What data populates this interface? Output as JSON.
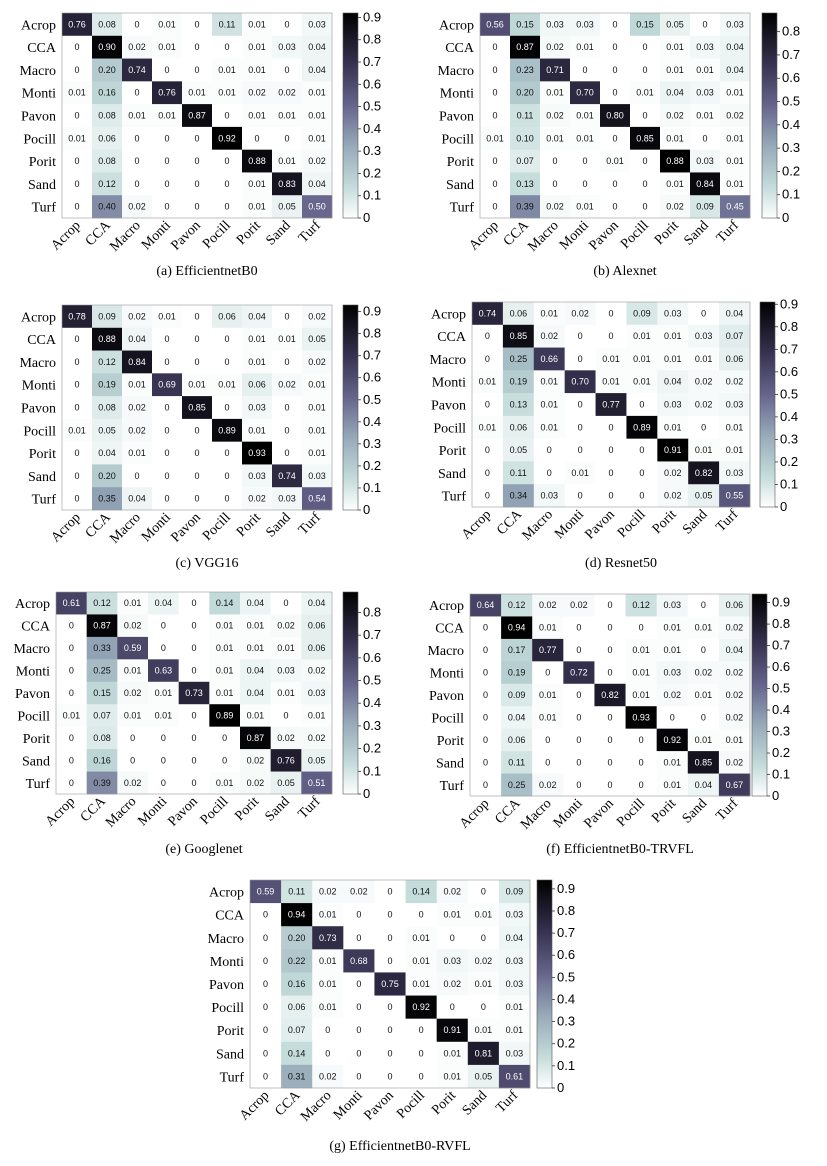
{
  "chart_data": [
    {
      "type": "heatmap",
      "caption": "(a) EfficientnetB0",
      "labels": [
        "Acrop",
        "CCA",
        "Macro",
        "Monti",
        "Pavon",
        "Pocill",
        "Porit",
        "Sand",
        "Turf"
      ],
      "matrix": [
        [
          0.76,
          0.08,
          0,
          0.01,
          0,
          0.11,
          0.01,
          0,
          0.03
        ],
        [
          0,
          0.9,
          0.02,
          0.01,
          0,
          0,
          0.01,
          0.03,
          0.04
        ],
        [
          0,
          0.2,
          0.74,
          0,
          0,
          0.01,
          0.01,
          0,
          0.04
        ],
        [
          0.01,
          0.16,
          0,
          0.76,
          0.01,
          0.01,
          0.02,
          0.02,
          0.01
        ],
        [
          0,
          0.08,
          0.01,
          0.01,
          0.87,
          0,
          0.01,
          0.01,
          0.01
        ],
        [
          0.01,
          0.06,
          0,
          0,
          0,
          0.92,
          0,
          0,
          0.01
        ],
        [
          0,
          0.08,
          0,
          0,
          0,
          0,
          0.88,
          0.01,
          0.02
        ],
        [
          0,
          0.12,
          0,
          0,
          0,
          0,
          0.01,
          0.83,
          0.04
        ],
        [
          0,
          0.4,
          0.02,
          0,
          0,
          0,
          0.01,
          0.05,
          0.5
        ]
      ],
      "colorbar_ticks": [
        "0",
        "0.1",
        "0.2",
        "0.3",
        "0.4",
        "0.5",
        "0.6",
        "0.7",
        "0.8",
        "0.9"
      ],
      "colorbar_range": [
        0,
        0.92
      ]
    },
    {
      "type": "heatmap",
      "caption": "(b) Alexnet",
      "labels": [
        "Acrop",
        "CCA",
        "Macro",
        "Monti",
        "Pavon",
        "Pocill",
        "Porit",
        "Sand",
        "Turf"
      ],
      "matrix": [
        [
          0.56,
          0.15,
          0.03,
          0.03,
          0,
          0.15,
          0.05,
          0,
          0.03
        ],
        [
          0,
          0.87,
          0.02,
          0.01,
          0,
          0,
          0.01,
          0.03,
          0.04
        ],
        [
          0,
          0.23,
          0.71,
          0,
          0,
          0,
          0.01,
          0.01,
          0.04
        ],
        [
          0,
          0.2,
          0.01,
          0.7,
          0,
          0.01,
          0.04,
          0.03,
          0.01
        ],
        [
          0,
          0.11,
          0.02,
          0.01,
          0.8,
          0,
          0.02,
          0.01,
          0.02
        ],
        [
          0.01,
          0.1,
          0.01,
          0.01,
          0,
          0.85,
          0.01,
          0,
          0.01
        ],
        [
          0,
          0.07,
          0,
          0,
          0.01,
          0,
          0.88,
          0.03,
          0.01
        ],
        [
          0,
          0.13,
          0,
          0,
          0,
          0,
          0.01,
          0.84,
          0.01
        ],
        [
          0,
          0.39,
          0.02,
          0.01,
          0,
          0,
          0.02,
          0.09,
          0.45
        ]
      ],
      "colorbar_ticks": [
        "0",
        "0.1",
        "0.2",
        "0.3",
        "0.4",
        "0.5",
        "0.6",
        "0.7",
        "0.8"
      ],
      "colorbar_range": [
        0,
        0.88
      ]
    },
    {
      "type": "heatmap",
      "caption": "(c) VGG16",
      "labels": [
        "Acrop",
        "CCA",
        "Macro",
        "Monti",
        "Pavon",
        "Pocill",
        "Porit",
        "Sand",
        "Turf"
      ],
      "matrix": [
        [
          0.78,
          0.09,
          0.02,
          0.01,
          0,
          0.06,
          0.04,
          0,
          0.02
        ],
        [
          0,
          0.88,
          0.04,
          0,
          0,
          0,
          0.01,
          0.01,
          0.05
        ],
        [
          0,
          0.12,
          0.84,
          0,
          0,
          0,
          0.01,
          0,
          0.02
        ],
        [
          0,
          0.19,
          0.01,
          0.69,
          0.01,
          0.01,
          0.06,
          0.02,
          0.01
        ],
        [
          0,
          0.08,
          0.02,
          0,
          0.85,
          0,
          0.03,
          0,
          0.01
        ],
        [
          0.01,
          0.05,
          0.02,
          0,
          0,
          0.89,
          0.01,
          0,
          0.01
        ],
        [
          0,
          0.04,
          0.01,
          0,
          0,
          0,
          0.93,
          0,
          0.01
        ],
        [
          0,
          0.2,
          0,
          0,
          0,
          0,
          0.03,
          0.74,
          0.03
        ],
        [
          0,
          0.35,
          0.04,
          0,
          0,
          0,
          0.02,
          0.03,
          0.54
        ]
      ],
      "colorbar_ticks": [
        "0",
        "0.1",
        "0.2",
        "0.3",
        "0.4",
        "0.5",
        "0.6",
        "0.7",
        "0.8",
        "0.9"
      ],
      "colorbar_range": [
        0,
        0.93
      ]
    },
    {
      "type": "heatmap",
      "caption": "(d) Resnet50",
      "labels": [
        "Acrop",
        "CCA",
        "Macro",
        "Monti",
        "Pavon",
        "Pocill",
        "Porit",
        "Sand",
        "Turf"
      ],
      "matrix": [
        [
          0.74,
          0.06,
          0.01,
          0.02,
          0,
          0.09,
          0.03,
          0,
          0.04
        ],
        [
          0,
          0.85,
          0.02,
          0,
          0,
          0.01,
          0.01,
          0.03,
          0.07
        ],
        [
          0,
          0.25,
          0.66,
          0,
          0.01,
          0.01,
          0.01,
          0.01,
          0.06
        ],
        [
          0.01,
          0.19,
          0.01,
          0.7,
          0.01,
          0.01,
          0.04,
          0.02,
          0.02
        ],
        [
          0,
          0.13,
          0.01,
          0,
          0.77,
          0,
          0.03,
          0.02,
          0.03
        ],
        [
          0.01,
          0.06,
          0.01,
          0,
          0,
          0.89,
          0.01,
          0,
          0.01
        ],
        [
          0,
          0.05,
          0,
          0,
          0,
          0,
          0.91,
          0.01,
          0.01
        ],
        [
          0,
          0.11,
          0,
          0.01,
          0,
          0,
          0.02,
          0.82,
          0.03
        ],
        [
          0,
          0.34,
          0.03,
          0,
          0,
          0,
          0.02,
          0.05,
          0.55
        ]
      ],
      "colorbar_ticks": [
        "0",
        "0.1",
        "0.2",
        "0.3",
        "0.4",
        "0.5",
        "0.6",
        "0.7",
        "0.8",
        "0.9"
      ],
      "colorbar_range": [
        0,
        0.91
      ]
    },
    {
      "type": "heatmap",
      "caption": "(e) Googlenet",
      "labels": [
        "Acrop",
        "CCA",
        "Macro",
        "Monti",
        "Pavon",
        "Pocill",
        "Porit",
        "Sand",
        "Turf"
      ],
      "matrix": [
        [
          0.61,
          0.12,
          0.01,
          0.04,
          0,
          0.14,
          0.04,
          0,
          0.04
        ],
        [
          0,
          0.87,
          0.02,
          0,
          0,
          0.01,
          0.01,
          0.02,
          0.06
        ],
        [
          0,
          0.33,
          0.59,
          0,
          0,
          0.01,
          0.01,
          0.01,
          0.06
        ],
        [
          0,
          0.25,
          0.01,
          0.63,
          0,
          0.01,
          0.04,
          0.03,
          0.02
        ],
        [
          0,
          0.15,
          0.02,
          0.01,
          0.73,
          0.01,
          0.04,
          0.01,
          0.03
        ],
        [
          0.01,
          0.07,
          0.01,
          0.01,
          0,
          0.89,
          0.01,
          0,
          0.01
        ],
        [
          0,
          0.08,
          0,
          0,
          0,
          0,
          0.87,
          0.02,
          0.02
        ],
        [
          0,
          0.16,
          0,
          0,
          0,
          0,
          0.02,
          0.76,
          0.05
        ],
        [
          0,
          0.39,
          0.02,
          0,
          0,
          0.01,
          0.02,
          0.05,
          0.51
        ]
      ],
      "colorbar_ticks": [
        "0",
        "0.1",
        "0.2",
        "0.3",
        "0.4",
        "0.5",
        "0.6",
        "0.7",
        "0.8"
      ],
      "colorbar_range": [
        0,
        0.89
      ]
    },
    {
      "type": "heatmap",
      "caption": "(f) EfficientnetB0-TRVFL",
      "labels": [
        "Acrop",
        "CCA",
        "Macro",
        "Monti",
        "Pavon",
        "Pocill",
        "Porit",
        "Sand",
        "Turf"
      ],
      "matrix": [
        [
          0.64,
          0.12,
          0.02,
          0.02,
          0,
          0.12,
          0.03,
          0,
          0.06
        ],
        [
          0,
          0.94,
          0.01,
          0,
          0,
          0,
          0.01,
          0.01,
          0.02
        ],
        [
          0,
          0.17,
          0.77,
          0,
          0,
          0.01,
          0.01,
          0,
          0.04
        ],
        [
          0,
          0.19,
          0,
          0.72,
          0,
          0.01,
          0.03,
          0.02,
          0.02
        ],
        [
          0,
          0.09,
          0.01,
          0,
          0.82,
          0.01,
          0.02,
          0.01,
          0.02
        ],
        [
          0,
          0.04,
          0.01,
          0,
          0,
          0.93,
          0,
          0,
          0.02
        ],
        [
          0,
          0.06,
          0,
          0,
          0,
          0,
          0.92,
          0.01,
          0.01
        ],
        [
          0,
          0.11,
          0,
          0,
          0,
          0,
          0.01,
          0.85,
          0.02
        ],
        [
          0,
          0.25,
          0.02,
          0,
          0,
          0,
          0.01,
          0.04,
          0.67
        ]
      ],
      "colorbar_ticks": [
        "0",
        "0.1",
        "0.2",
        "0.3",
        "0.4",
        "0.5",
        "0.6",
        "0.7",
        "0.8",
        "0.9"
      ],
      "colorbar_range": [
        0,
        0.94
      ]
    },
    {
      "type": "heatmap",
      "caption": "(g) EfficientnetB0-RVFL",
      "labels": [
        "Acrop",
        "CCA",
        "Macro",
        "Monti",
        "Pavon",
        "Pocill",
        "Porit",
        "Sand",
        "Turf"
      ],
      "matrix": [
        [
          0.59,
          0.11,
          0.02,
          0.02,
          0,
          0.14,
          0.02,
          0,
          0.09
        ],
        [
          0,
          0.94,
          0.01,
          0,
          0,
          0,
          0.01,
          0.01,
          0.03
        ],
        [
          0,
          0.2,
          0.73,
          0,
          0,
          0.01,
          0,
          0,
          0.04
        ],
        [
          0,
          0.22,
          0.01,
          0.68,
          0,
          0.01,
          0.03,
          0.02,
          0.03
        ],
        [
          0,
          0.16,
          0.01,
          0,
          0.75,
          0.01,
          0.02,
          0.01,
          0.03
        ],
        [
          0,
          0.06,
          0.01,
          0,
          0,
          0.92,
          0,
          0,
          0.01
        ],
        [
          0,
          0.07,
          0,
          0,
          0,
          0,
          0.91,
          0.01,
          0.01
        ],
        [
          0,
          0.14,
          0,
          0,
          0,
          0,
          0.01,
          0.81,
          0.03
        ],
        [
          0,
          0.31,
          0.02,
          0,
          0,
          0,
          0.01,
          0.05,
          0.61
        ]
      ],
      "colorbar_ticks": [
        "0",
        "0.1",
        "0.2",
        "0.3",
        "0.4",
        "0.5",
        "0.6",
        "0.7",
        "0.8",
        "0.9"
      ],
      "colorbar_range": [
        0,
        0.94
      ]
    }
  ]
}
